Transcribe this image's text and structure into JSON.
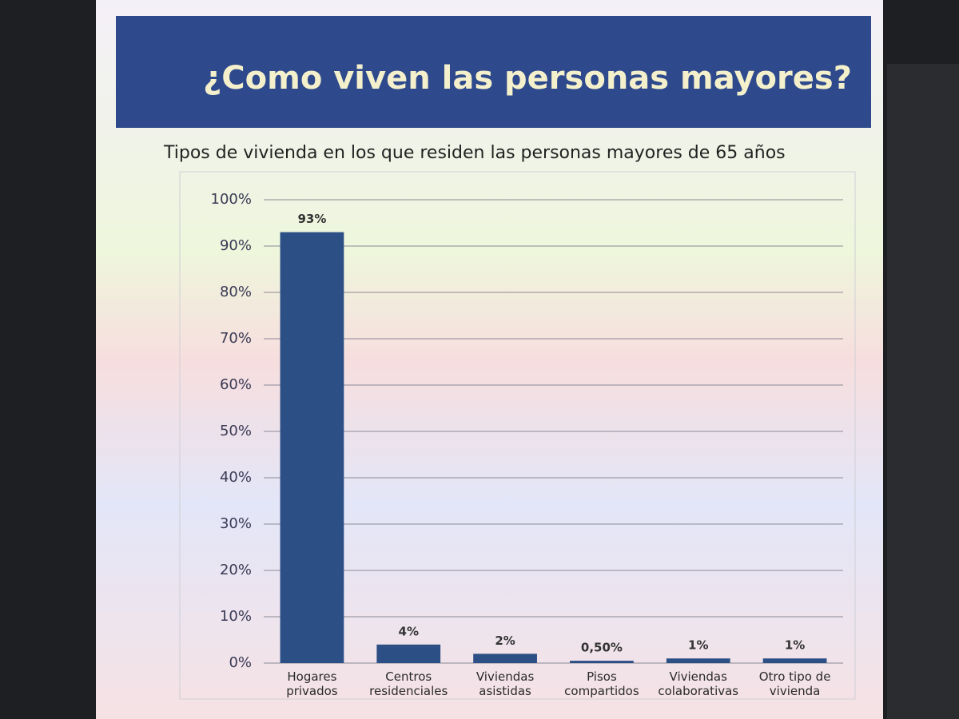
{
  "chart_data": {
    "type": "bar",
    "title": "¿Como viven las personas mayores?",
    "subtitle": "Tipos de vivienda en los que residen las personas mayores de 65 años",
    "categories": [
      "Hogares privados",
      "Centros residenciales",
      "Viviendas asistidas",
      "Pisos compartidos",
      "Viviendas colaborativas",
      "Otro tipo de vivienda"
    ],
    "values": [
      93,
      4,
      2,
      0.5,
      1,
      1
    ],
    "value_labels": [
      "93%",
      "4%",
      "2%",
      "0,50%",
      "1%",
      "1%"
    ],
    "color": "#2c4f86",
    "ylim": [
      0,
      100
    ],
    "yticks": [
      {
        "value": 0,
        "label": "0%"
      },
      {
        "value": 10,
        "label": "10%"
      },
      {
        "value": 20,
        "label": "20%"
      },
      {
        "value": 30,
        "label": "30%"
      },
      {
        "value": 40,
        "label": "40%"
      },
      {
        "value": 50,
        "label": "50%"
      },
      {
        "value": 60,
        "label": "60%"
      },
      {
        "value": 70,
        "label": "70%"
      },
      {
        "value": 80,
        "label": "80%"
      },
      {
        "value": 90,
        "label": "90%"
      },
      {
        "value": 100,
        "label": "100%"
      }
    ],
    "grid": true
  }
}
